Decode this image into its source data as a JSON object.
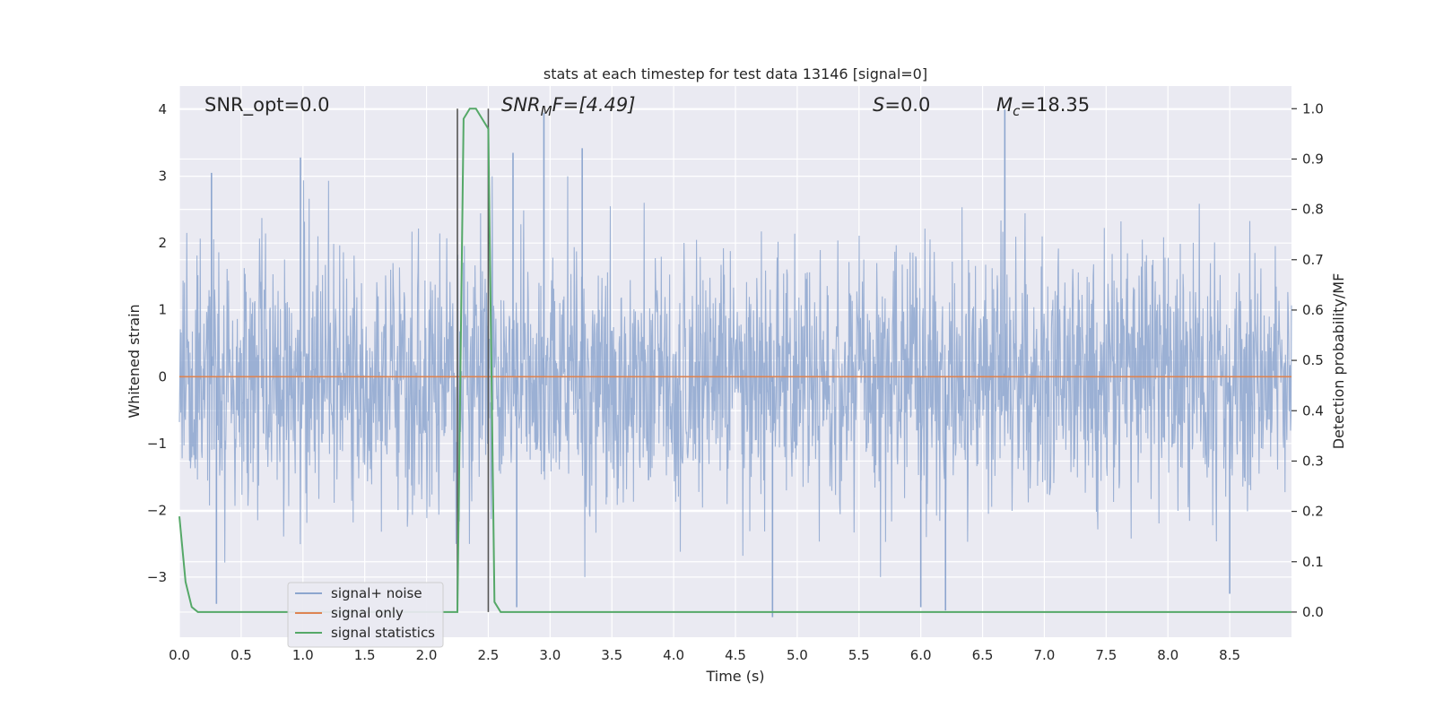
{
  "chart_data": {
    "type": "line",
    "title": "stats at each timestep for test data 13146 [signal=0]",
    "xlabel": "Time (s)",
    "ylabel": "Whitened strain",
    "y2label": "Detection probability/MF",
    "xlim": [
      0,
      9.0
    ],
    "ylim": [
      -3.9,
      4.35
    ],
    "y2lim": [
      -0.05,
      1.045
    ],
    "xticks": [
      0.0,
      0.5,
      1.0,
      1.5,
      2.0,
      2.5,
      3.0,
      3.5,
      4.0,
      4.5,
      5.0,
      5.5,
      6.0,
      6.5,
      7.0,
      7.5,
      8.0,
      8.5
    ],
    "xtick_labels": [
      "0.0",
      "0.5",
      "1.0",
      "1.5",
      "2.0",
      "2.5",
      "3.0",
      "3.5",
      "4.0",
      "4.5",
      "5.0",
      "5.5",
      "6.0",
      "6.5",
      "7.0",
      "7.5",
      "8.0",
      "8.5"
    ],
    "yticks": [
      -3,
      -2,
      -1,
      0,
      1,
      2,
      3,
      4
    ],
    "ytick_labels": [
      "−3",
      "−2",
      "−1",
      "0",
      "1",
      "2",
      "3",
      "4"
    ],
    "y2ticks": [
      0.0,
      0.1,
      0.2,
      0.3,
      0.4,
      0.5,
      0.6,
      0.7,
      0.8,
      0.9,
      1.0
    ],
    "y2tick_labels": [
      "0.0",
      "0.1",
      "0.2",
      "0.3",
      "0.4",
      "0.5",
      "0.6",
      "0.7",
      "0.8",
      "0.9",
      "1.0"
    ],
    "grid": true,
    "legend_position": "lower-left",
    "annotations": {
      "snr_opt": "SNR_opt=0.0",
      "snr_mf_main": "SNR",
      "snr_mf_sub": "M",
      "snr_mf_rest": "F=[4.49]",
      "s_main": "S",
      "s_rest": "=0.0",
      "mc_main": "M",
      "mc_sub": "c",
      "mc_rest": "=18.35"
    },
    "series": [
      {
        "name": "signal+ noise",
        "color": "#8da6cf",
        "sample_rate_hz": 2048,
        "duration_s": 9.0,
        "typical_envelope": [
          -1.9,
          1.9
        ],
        "peaks": [
          {
            "x": 0.26,
            "y": 3.05
          },
          {
            "x": 0.98,
            "y": 3.28
          },
          {
            "x": 2.95,
            "y": 3.95
          },
          {
            "x": 3.26,
            "y": 3.42
          },
          {
            "x": 2.7,
            "y": 3.35
          },
          {
            "x": 6.68,
            "y": 4.0
          },
          {
            "x": 4.8,
            "y": -3.6
          },
          {
            "x": 6.2,
            "y": -3.5
          },
          {
            "x": 6.0,
            "y": -3.45
          },
          {
            "x": 2.73,
            "y": -3.45
          },
          {
            "x": 0.3,
            "y": -3.4
          },
          {
            "x": 8.5,
            "y": -3.25
          }
        ]
      },
      {
        "name": "signal only",
        "color": "#dd8452",
        "x": [
          0,
          9.0
        ],
        "y": [
          0,
          0
        ]
      },
      {
        "name": "signal statistics",
        "color": "#55a868",
        "axis": "right",
        "x": [
          0.0,
          0.05,
          0.1,
          0.15,
          0.2,
          2.2,
          2.25,
          2.3,
          2.35,
          2.4,
          2.45,
          2.5,
          2.55,
          2.6,
          2.65,
          2.7,
          9.0
        ],
        "y": [
          0.19,
          0.06,
          0.01,
          0.0,
          0.0,
          0.0,
          0.0,
          0.98,
          1.0,
          1.0,
          0.98,
          0.96,
          0.02,
          0.0,
          0.0,
          0.0,
          0.0
        ]
      }
    ],
    "vertical_markers": [
      2.25,
      2.5
    ],
    "vertical_marker_color": "#555555"
  }
}
